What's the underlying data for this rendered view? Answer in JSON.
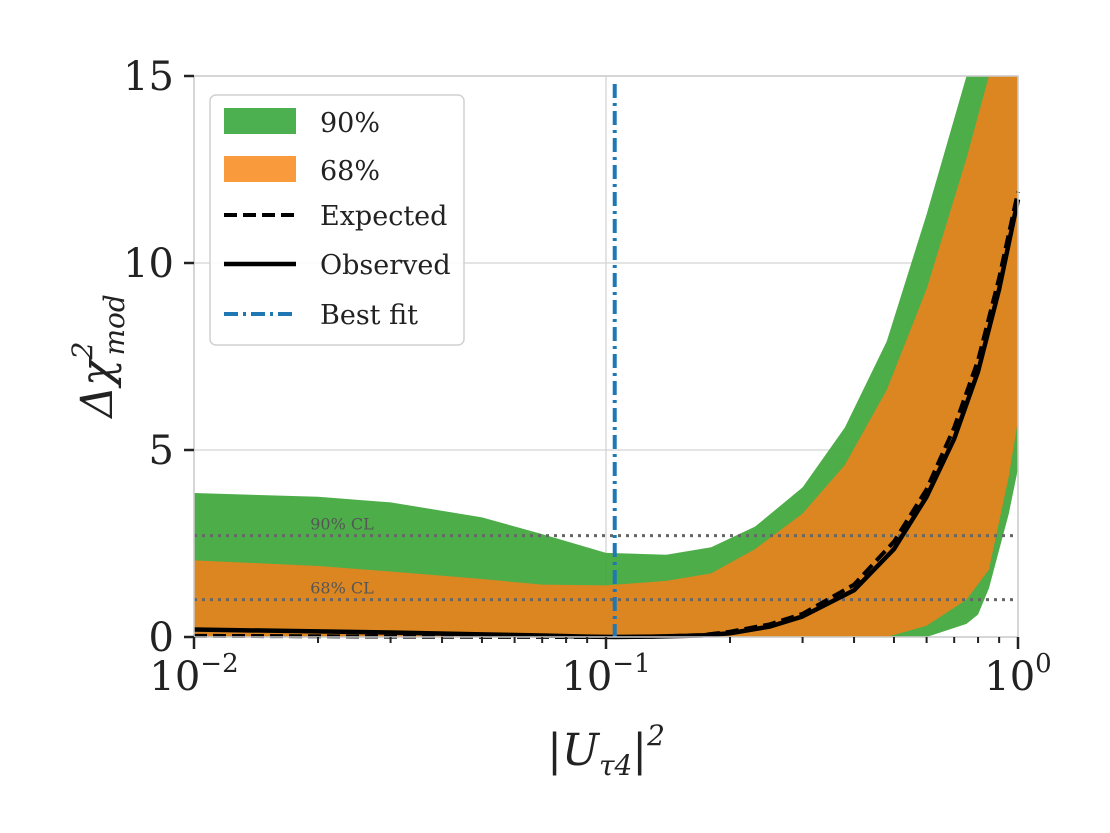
{
  "chart_data": {
    "type": "line",
    "xscale": "log",
    "xlim": [
      0.01,
      1
    ],
    "ylim": [
      0,
      15
    ],
    "grid": true,
    "xticks": [
      {
        "value": 0.01,
        "base": "10",
        "exp": "−2"
      },
      {
        "value": 0.1,
        "base": "10",
        "exp": "−1"
      },
      {
        "value": 1,
        "base": "10",
        "exp": "0"
      }
    ],
    "yticks": [
      {
        "value": 0,
        "label": "0"
      },
      {
        "value": 5,
        "label": "5"
      },
      {
        "value": 10,
        "label": "10"
      },
      {
        "value": 15,
        "label": "15"
      }
    ],
    "xlabel": {
      "text": "|U",
      "sub": "τ4",
      "close": "|",
      "sup": "2"
    },
    "ylabel": {
      "text": "Δχ",
      "sup": "2",
      "sub": "mod"
    },
    "legend": {
      "position": "top-left",
      "entries": [
        {
          "label": "90%",
          "kind": "patch",
          "color": "#4caf50"
        },
        {
          "label": "68%",
          "kind": "patch",
          "color": "#f28e2b"
        },
        {
          "label": "Expected",
          "kind": "dashed",
          "color": "#000000"
        },
        {
          "label": "Observed",
          "kind": "solid",
          "color": "#000000"
        },
        {
          "label": "Best fit",
          "kind": "dashdot",
          "color": "#1f77b4"
        }
      ]
    },
    "series": [
      {
        "name": "90%",
        "kind": "band",
        "color": "#3ea63a",
        "x": [
          0.01,
          0.02,
          0.03,
          0.05,
          0.07,
          0.1,
          0.14,
          0.18,
          0.23,
          0.3,
          0.38,
          0.48,
          0.6,
          0.75,
          0.8,
          0.85,
          0.95,
          1.0
        ],
        "upper": [
          3.85,
          3.75,
          3.6,
          3.2,
          2.75,
          2.25,
          2.2,
          2.4,
          2.95,
          4.0,
          5.6,
          7.9,
          11.3,
          15,
          15,
          15,
          15,
          15
        ],
        "lower": [
          0,
          0,
          0,
          0,
          0,
          0,
          0,
          0,
          0,
          0,
          0,
          0,
          0,
          0.35,
          0.6,
          1.3,
          3.3,
          4.5
        ]
      },
      {
        "name": "68%",
        "kind": "band",
        "color": "#e8821e",
        "x": [
          0.01,
          0.02,
          0.03,
          0.05,
          0.07,
          0.1,
          0.14,
          0.18,
          0.23,
          0.3,
          0.38,
          0.48,
          0.6,
          0.75,
          0.85,
          0.95,
          1.0
        ],
        "upper": [
          2.05,
          1.9,
          1.75,
          1.55,
          1.4,
          1.38,
          1.5,
          1.7,
          2.35,
          3.3,
          4.6,
          6.6,
          9.3,
          12.8,
          15,
          15,
          15
        ],
        "lower": [
          0,
          0,
          0,
          0,
          0,
          0,
          0,
          0,
          0,
          0,
          0,
          0,
          0.3,
          1.0,
          1.8,
          4.3,
          5.8
        ]
      },
      {
        "name": "Expected",
        "kind": "dashed",
        "color": "#000000",
        "x": [
          0.01,
          0.02,
          0.03,
          0.05,
          0.07,
          0.1,
          0.13,
          0.17,
          0.2,
          0.25,
          0.3,
          0.4,
          0.5,
          0.6,
          0.7,
          0.8,
          0.9,
          1.0
        ],
        "y": [
          0.03,
          0.02,
          0.01,
          0.005,
          0.002,
          0,
          0.01,
          0.05,
          0.14,
          0.34,
          0.62,
          1.4,
          2.55,
          3.95,
          5.6,
          7.4,
          9.6,
          11.9
        ]
      },
      {
        "name": "Observed",
        "kind": "solid",
        "color": "#000000",
        "x": [
          0.01,
          0.02,
          0.03,
          0.05,
          0.07,
          0.09,
          0.105,
          0.13,
          0.17,
          0.2,
          0.25,
          0.3,
          0.4,
          0.5,
          0.6,
          0.7,
          0.8,
          0.9,
          1.0
        ],
        "y": [
          0.2,
          0.15,
          0.12,
          0.07,
          0.04,
          0.01,
          0,
          0.01,
          0.04,
          0.1,
          0.28,
          0.55,
          1.25,
          2.35,
          3.75,
          5.3,
          7.1,
          9.3,
          11.7
        ]
      },
      {
        "name": "Best fit",
        "kind": "vline",
        "color": "#1f77b4",
        "x": 0.105
      }
    ],
    "reference_lines": [
      {
        "y": 2.71,
        "label": "90% CL",
        "color": "#666666"
      },
      {
        "y": 1.0,
        "label": "68% CL",
        "color": "#666666"
      }
    ]
  }
}
